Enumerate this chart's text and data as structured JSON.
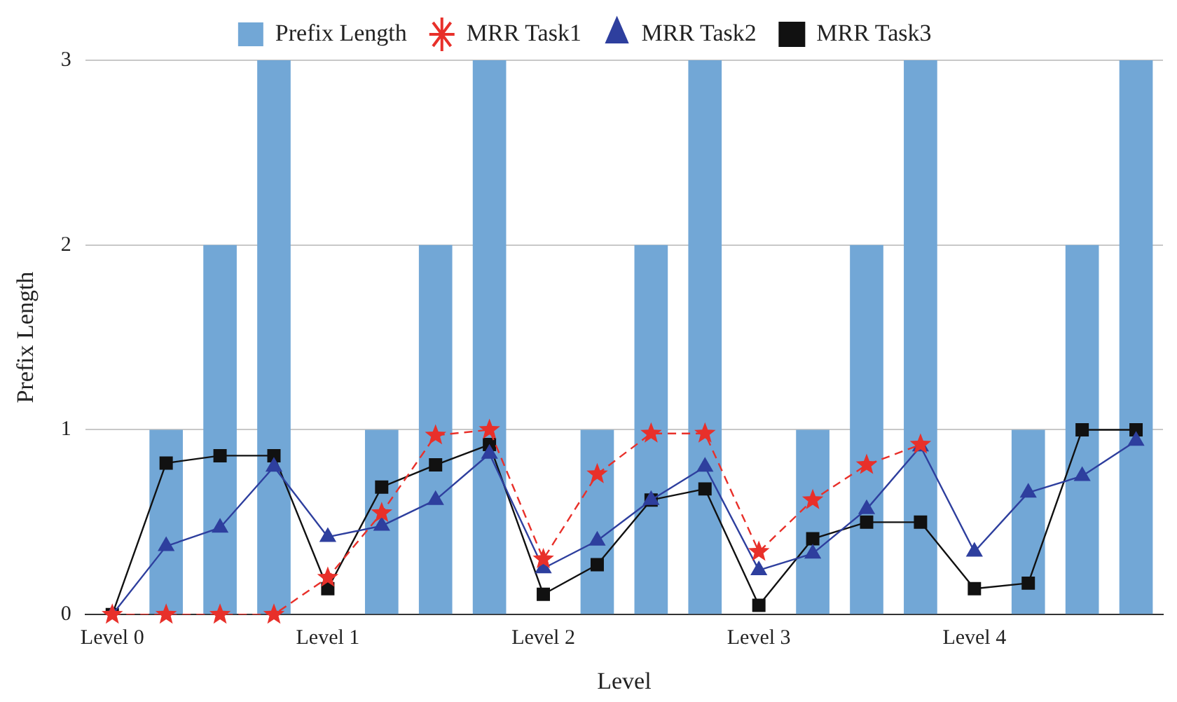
{
  "chart_data": {
    "type": "bar",
    "xlabel": "Level",
    "ylabel": "Prefix Length",
    "categories": [
      "Level 0",
      null,
      null,
      null,
      "Level 1",
      null,
      null,
      null,
      "Level 2",
      null,
      null,
      null,
      "Level 3",
      null,
      null,
      null,
      "Level 4",
      null,
      null,
      null
    ],
    "series": [
      {
        "name": "Prefix Length",
        "color": "#72a7d6",
        "values": [
          null,
          1,
          2,
          3,
          null,
          1,
          2,
          3,
          null,
          1,
          2,
          3,
          null,
          1,
          2,
          3,
          null,
          1,
          2,
          3
        ]
      },
      {
        "name": "MRR Task1",
        "type": "line",
        "color": "#e8302a",
        "marker": "star",
        "line_style": "dashed",
        "values": [
          0,
          0,
          0,
          0,
          0.2,
          0.55,
          0.97,
          1.0,
          0.3,
          0.76,
          0.98,
          0.98,
          0.34,
          0.62,
          0.81,
          0.92,
          null,
          null,
          null,
          null
        ]
      },
      {
        "name": "MRR Task2",
        "type": "line",
        "color": "#2e3f9e",
        "marker": "triangle",
        "line_style": "solid",
        "values": [
          0,
          0.37,
          0.47,
          0.8,
          0.42,
          0.48,
          0.62,
          0.87,
          0.25,
          0.4,
          0.62,
          0.8,
          0.24,
          0.33,
          0.57,
          0.91,
          0.34,
          0.66,
          0.75,
          0.94
        ]
      },
      {
        "name": "MRR Task3",
        "type": "line",
        "color": "#111111",
        "marker": "square",
        "line_style": "solid",
        "values": [
          0,
          0.82,
          0.86,
          0.86,
          0.14,
          0.69,
          0.81,
          0.92,
          0.11,
          0.27,
          0.62,
          0.68,
          0.05,
          0.41,
          0.5,
          0.5,
          0.14,
          0.17,
          1.0,
          1.0
        ]
      }
    ],
    "ylim": [
      0,
      3
    ],
    "yticks": [
      0,
      1,
      2,
      3
    ],
    "grid": "y",
    "legend": "top"
  }
}
